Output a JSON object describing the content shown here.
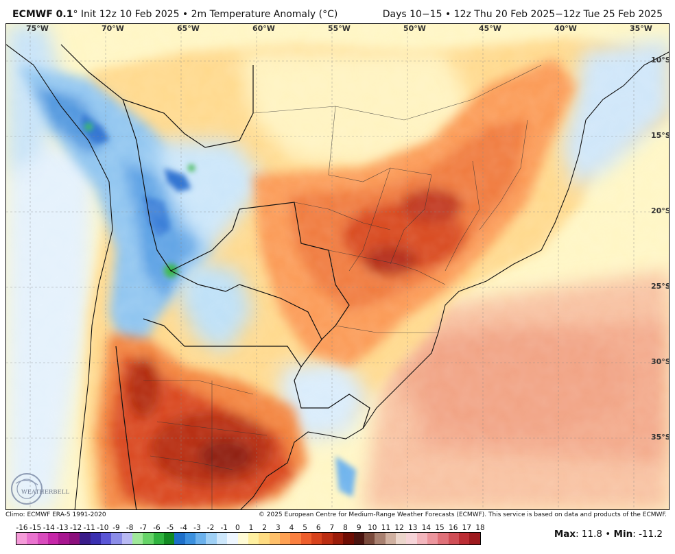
{
  "header": {
    "model": "ECMWF 0.1",
    "degree": "°",
    "init": " Init 12z 10 Feb 2025 • 2m Temperature Anomaly (°C)",
    "valid": "Days 10−15 • 12z Thu 20 Feb 2025−12z Tue 25 Feb 2025"
  },
  "map": {
    "lon_labels": [
      "75°W",
      "70°W",
      "65°W",
      "60°W",
      "55°W",
      "50°W",
      "45°W",
      "40°W",
      "35°W"
    ],
    "lat_labels": [
      "10°S",
      "15°S",
      "20°S",
      "25°S",
      "30°S",
      "35°S"
    ],
    "lon_range": [
      -76.5,
      -32.5
    ],
    "lat_range": [
      -42,
      -8
    ],
    "logo_text": "WEATHERBELL"
  },
  "footer": {
    "climo": "Climo: ECMWF ERA-5 1991-2020",
    "copyright": "© 2025 European Centre for Medium-Range Weather Forecasts (ECMWF). This service is based on data and products of the ECMWF."
  },
  "colorbar": {
    "ticks": [
      "-16",
      "-15",
      "-14",
      "-13",
      "-12",
      "-11",
      "-10",
      "-9",
      "-8",
      "-7",
      "-6",
      "-5",
      "-4",
      "-3",
      "-2",
      "-1",
      "0",
      "1",
      "2",
      "3",
      "4",
      "5",
      "6",
      "7",
      "8",
      "9",
      "10",
      "11",
      "12",
      "13",
      "14",
      "15",
      "16",
      "17",
      "18"
    ],
    "colors": [
      "#f59bd9",
      "#ea73cf",
      "#d94bbd",
      "#c626a8",
      "#a81690",
      "#8b0f7c",
      "#3a1c8a",
      "#3a2fb0",
      "#5a55d6",
      "#8b8ce8",
      "#b8b9f3",
      "#9fe89a",
      "#66d468",
      "#2fb33f",
      "#128a22",
      "#1d6fc9",
      "#3b90de",
      "#6bb1ec",
      "#9fd0f5",
      "#cde7fb",
      "#eef6fe",
      "#fffbd5",
      "#fff0a0",
      "#ffdc82",
      "#ffc06a",
      "#ffa153",
      "#fb8040",
      "#ee5e2c",
      "#d7421c",
      "#bb2d12",
      "#9a1c0a",
      "#6e0d04",
      "#4a1410",
      "#7a4a3c",
      "#a88070",
      "#d0b0a0",
      "#ecd6cc",
      "#f6d4d8",
      "#f3b6bd",
      "#ec959d",
      "#e07179",
      "#d04e56",
      "#bc2d34",
      "#9e1a1e"
    ]
  },
  "stats": {
    "max_label": "Max",
    "max_value": "11.8",
    "sep": " • ",
    "min_label": "Min",
    "min_value": "-11.2"
  },
  "colors": {
    "ocean_pale": "#fffbd5",
    "cold_blue": "#9fd0f5",
    "warm_orange": "#ffa153",
    "hot_red": "#bb2d12"
  }
}
